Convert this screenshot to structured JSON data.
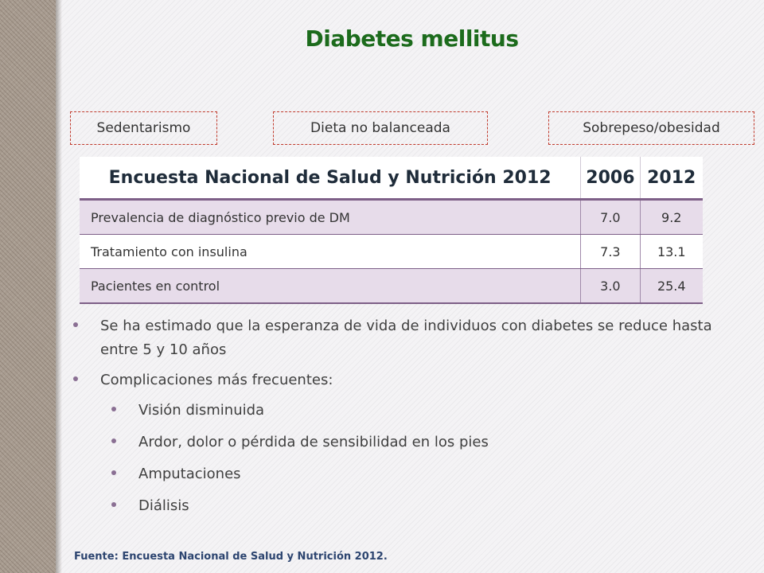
{
  "slide": {
    "title": "Diabetes mellitus",
    "risk_factors": [
      "Sedentarismo",
      "Dieta no balanceada",
      "Sobrepeso/obesidad"
    ],
    "table": {
      "headers": [
        "Encuesta Nacional de Salud y Nutrición 2012",
        "2006",
        "2012"
      ],
      "rows": [
        {
          "label": "Prevalencia de diagnóstico previo de DM",
          "v2006": "7.0",
          "v2012": "9.2"
        },
        {
          "label": "Tratamiento con insulina",
          "v2006": "7.3",
          "v2012": "13.1"
        },
        {
          "label": "Pacientes en control",
          "v2006": "3.0",
          "v2012": "25.4"
        }
      ]
    },
    "bullets": [
      "Se ha estimado que la esperanza de vida de individuos con diabetes se reduce hasta entre 5 y 10 años",
      "Complicaciones más frecuentes:"
    ],
    "sub_bullets": [
      "Visión disminuida",
      "Ardor, dolor o pérdida de sensibilidad en los pies",
      "Amputaciones",
      "Diálisis"
    ],
    "source": "Fuente: Encuesta Nacional de Salud y Nutrición 2012."
  },
  "colors": {
    "title": "#1c6b1c",
    "tag_border": "#c0392b",
    "table_accent": "#7d5f87",
    "row_shade": "#e7dcea",
    "source_text": "#2d4570"
  }
}
